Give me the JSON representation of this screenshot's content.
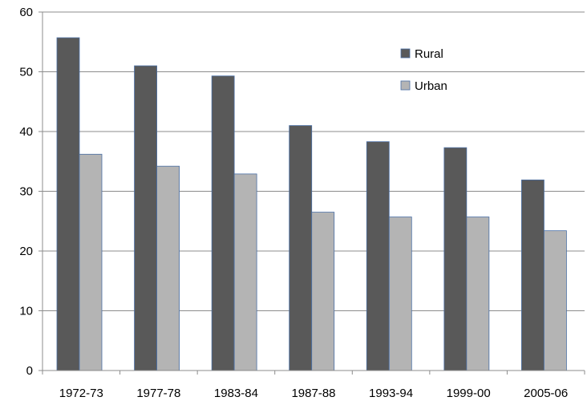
{
  "chart_data": {
    "type": "bar",
    "title": "",
    "xlabel": "",
    "ylabel": "",
    "categories": [
      "1972-73",
      "1977-78",
      "1983-84",
      "1987-88",
      "1993-94",
      "1999-00",
      "2005-06"
    ],
    "series": [
      {
        "name": "Rural",
        "color": "#595959",
        "values": [
          55.7,
          51.0,
          49.3,
          41.0,
          38.3,
          37.3,
          31.9
        ]
      },
      {
        "name": "Urban",
        "color": "#b4b4b4",
        "values": [
          36.2,
          34.2,
          32.9,
          26.5,
          25.7,
          25.7,
          23.4
        ]
      }
    ],
    "ylim": [
      0,
      60
    ],
    "yticks": [
      0,
      10,
      20,
      30,
      40,
      50,
      60
    ],
    "grid": true,
    "legend_position": "top-right"
  }
}
